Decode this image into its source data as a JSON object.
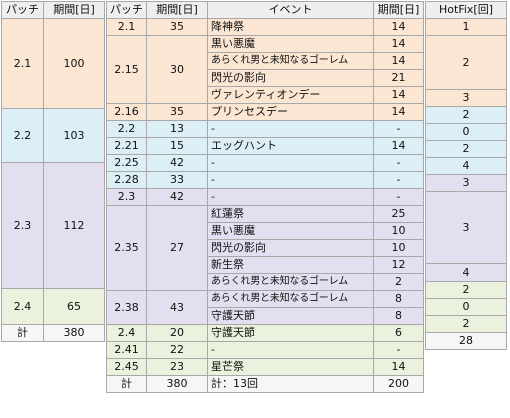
{
  "headers": {
    "patch": "パッチ",
    "period": "期間[日]",
    "sub_patch": "パッチ",
    "sub_period": "期間[日]",
    "event": "イベント",
    "event_period": "期間[日]",
    "hotfix": "HotFix[回]"
  },
  "patch_groups": [
    {
      "name": "2.1",
      "days": "100"
    },
    {
      "name": "2.2",
      "days": "103"
    },
    {
      "name": "2.3",
      "days": "112"
    },
    {
      "name": "2.4",
      "days": "65"
    }
  ],
  "sub_patches": [
    {
      "name": "2.1",
      "days": "35"
    },
    {
      "name": "2.15",
      "days": "30"
    },
    {
      "name": "2.16",
      "days": "35"
    },
    {
      "name": "2.2",
      "days": "13"
    },
    {
      "name": "2.21",
      "days": "15"
    },
    {
      "name": "2.25",
      "days": "42"
    },
    {
      "name": "2.28",
      "days": "33"
    },
    {
      "name": "2.3",
      "days": "42"
    },
    {
      "name": "2.35",
      "days": "27"
    },
    {
      "name": "2.38",
      "days": "43"
    },
    {
      "name": "2.4",
      "days": "20"
    },
    {
      "name": "2.41",
      "days": "22"
    },
    {
      "name": "2.45",
      "days": "23"
    }
  ],
  "events": [
    {
      "name": "降神祭",
      "days": "14"
    },
    {
      "name": "黒い悪魔",
      "days": "14"
    },
    {
      "name": "あらくれ男と未知なるゴーレム",
      "days": "14"
    },
    {
      "name": "閃光の影向",
      "days": "21"
    },
    {
      "name": "ヴァレンティオンデー",
      "days": "14"
    },
    {
      "name": "プリンセスデー",
      "days": "14"
    },
    {
      "name": "-",
      "days": "-"
    },
    {
      "name": "エッグハント",
      "days": "14"
    },
    {
      "name": "-",
      "days": "-"
    },
    {
      "name": "-",
      "days": "-"
    },
    {
      "name": "-",
      "days": "-"
    },
    {
      "name": "紅蓮祭",
      "days": "25"
    },
    {
      "name": "黒い悪魔",
      "days": "10"
    },
    {
      "name": "閃光の影向",
      "days": "10"
    },
    {
      "name": "新生祭",
      "days": "12"
    },
    {
      "name": "あらくれ男と未知なるゴーレム",
      "days": "2"
    },
    {
      "name": "あらくれ男と未知なるゴーレム",
      "days": "8"
    },
    {
      "name": "守護天節",
      "days": "8"
    },
    {
      "name": "守護天節",
      "days": "6"
    },
    {
      "name": "-",
      "days": "-"
    },
    {
      "name": "星芒祭",
      "days": "14"
    }
  ],
  "hotfix": [
    "1",
    "2",
    "3",
    "2",
    "0",
    "2",
    "4",
    "3",
    "3",
    "4",
    "2",
    "0",
    "2"
  ],
  "totals": {
    "label": "計",
    "days": "380",
    "sub_label": "計",
    "sub_days": "380",
    "event_label": "計：13回",
    "event_days": "200",
    "hotfix": "28"
  }
}
